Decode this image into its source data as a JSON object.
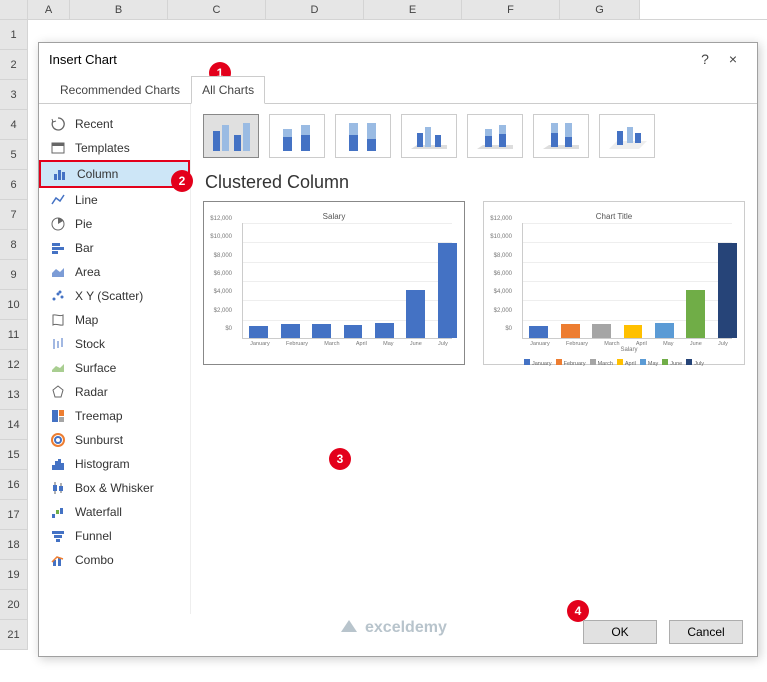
{
  "columns": [
    "A",
    "B",
    "C",
    "D",
    "E",
    "F",
    "G"
  ],
  "rows": [
    "1",
    "2",
    "3",
    "4",
    "5",
    "6",
    "7",
    "8",
    "9",
    "10",
    "11",
    "12",
    "13",
    "14",
    "15",
    "16",
    "17",
    "18",
    "19",
    "20",
    "21"
  ],
  "dialog": {
    "title": "Insert Chart",
    "help": "?",
    "close": "×",
    "tabs": {
      "recommended": "Recommended Charts",
      "all": "All Charts"
    },
    "ok": "OK",
    "cancel": "Cancel"
  },
  "callouts": {
    "c1": "1",
    "c2": "2",
    "c3": "3",
    "c4": "4"
  },
  "chart_types": [
    {
      "key": "recent",
      "label": "Recent"
    },
    {
      "key": "templates",
      "label": "Templates"
    },
    {
      "key": "column",
      "label": "Column"
    },
    {
      "key": "line",
      "label": "Line"
    },
    {
      "key": "pie",
      "label": "Pie"
    },
    {
      "key": "bar",
      "label": "Bar"
    },
    {
      "key": "area",
      "label": "Area"
    },
    {
      "key": "scatter",
      "label": "X Y (Scatter)"
    },
    {
      "key": "map",
      "label": "Map"
    },
    {
      "key": "stock",
      "label": "Stock"
    },
    {
      "key": "surface",
      "label": "Surface"
    },
    {
      "key": "radar",
      "label": "Radar"
    },
    {
      "key": "treemap",
      "label": "Treemap"
    },
    {
      "key": "sunburst",
      "label": "Sunburst"
    },
    {
      "key": "histogram",
      "label": "Histogram"
    },
    {
      "key": "boxwhisker",
      "label": "Box & Whisker"
    },
    {
      "key": "waterfall",
      "label": "Waterfall"
    },
    {
      "key": "funnel",
      "label": "Funnel"
    },
    {
      "key": "combo",
      "label": "Combo"
    }
  ],
  "selected_type": "column",
  "chart_name": "Clustered Column",
  "salary_chart": {
    "type": "bar",
    "title": "Salary",
    "categories": [
      "January",
      "February",
      "March",
      "April",
      "May",
      "June",
      "July"
    ],
    "values": [
      1200,
      1400,
      1400,
      1300,
      1600,
      5000,
      9800
    ],
    "bar_color": "#4472c4",
    "ymax": 12000,
    "ytick_step": 2000,
    "ylabels": [
      "$12,000",
      "$10,000",
      "$8,000",
      "$6,000",
      "$4,000",
      "$2,000",
      "$0"
    ],
    "grid_color": "#eeeeee",
    "background_color": "#ffffff"
  },
  "title_chart": {
    "type": "bar",
    "title": "Chart Title",
    "categories": [
      "January",
      "February",
      "March",
      "April",
      "May",
      "June",
      "July"
    ],
    "values": [
      1200,
      1400,
      1400,
      1300,
      1600,
      5000,
      9800
    ],
    "colors": [
      "#4472c4",
      "#ed7d31",
      "#a5a5a5",
      "#ffc000",
      "#5b9bd5",
      "#70ad47",
      "#264478"
    ],
    "ymax": 12000,
    "ytick_step": 2000,
    "ylabels": [
      "$12,000",
      "$10,000",
      "$8,000",
      "$6,000",
      "$4,000",
      "$2,000",
      "$0"
    ],
    "xlabel": "Salary",
    "grid_color": "#eeeeee",
    "background_color": "#ffffff"
  },
  "watermark": "exceldemy"
}
